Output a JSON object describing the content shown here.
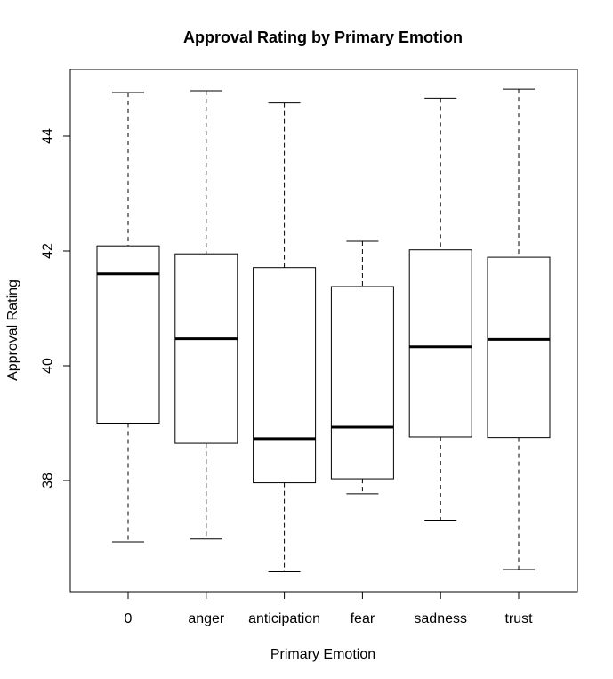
{
  "chart_data": {
    "type": "box",
    "title": "Approval Rating by Primary Emotion",
    "xlabel": "Primary Emotion",
    "ylabel": "Approval Rating",
    "categories": [
      "0",
      "anger",
      "anticipation",
      "fear",
      "sadness",
      "trust"
    ],
    "ylim": [
      36.2,
      45.3
    ],
    "yticks": [
      38,
      40,
      42,
      44
    ],
    "boxes": [
      {
        "category": "0",
        "whisker_low": 36.93,
        "q1": 39.0,
        "median": 41.6,
        "q3": 42.09,
        "whisker_high": 44.76
      },
      {
        "category": "anger",
        "whisker_low": 36.98,
        "q1": 38.65,
        "median": 40.47,
        "q3": 41.95,
        "whisker_high": 44.79
      },
      {
        "category": "anticipation",
        "whisker_low": 36.41,
        "q1": 37.96,
        "median": 38.73,
        "q3": 41.71,
        "whisker_high": 44.58
      },
      {
        "category": "fear",
        "whisker_low": 37.77,
        "q1": 38.03,
        "median": 38.93,
        "q3": 41.38,
        "whisker_high": 42.17
      },
      {
        "category": "sadness",
        "whisker_low": 37.31,
        "q1": 38.76,
        "median": 40.33,
        "q3": 42.02,
        "whisker_high": 44.66
      },
      {
        "category": "trust",
        "whisker_low": 36.45,
        "q1": 38.75,
        "median": 40.46,
        "q3": 41.89,
        "whisker_high": 44.82
      }
    ],
    "grid": false,
    "legend": "none"
  }
}
